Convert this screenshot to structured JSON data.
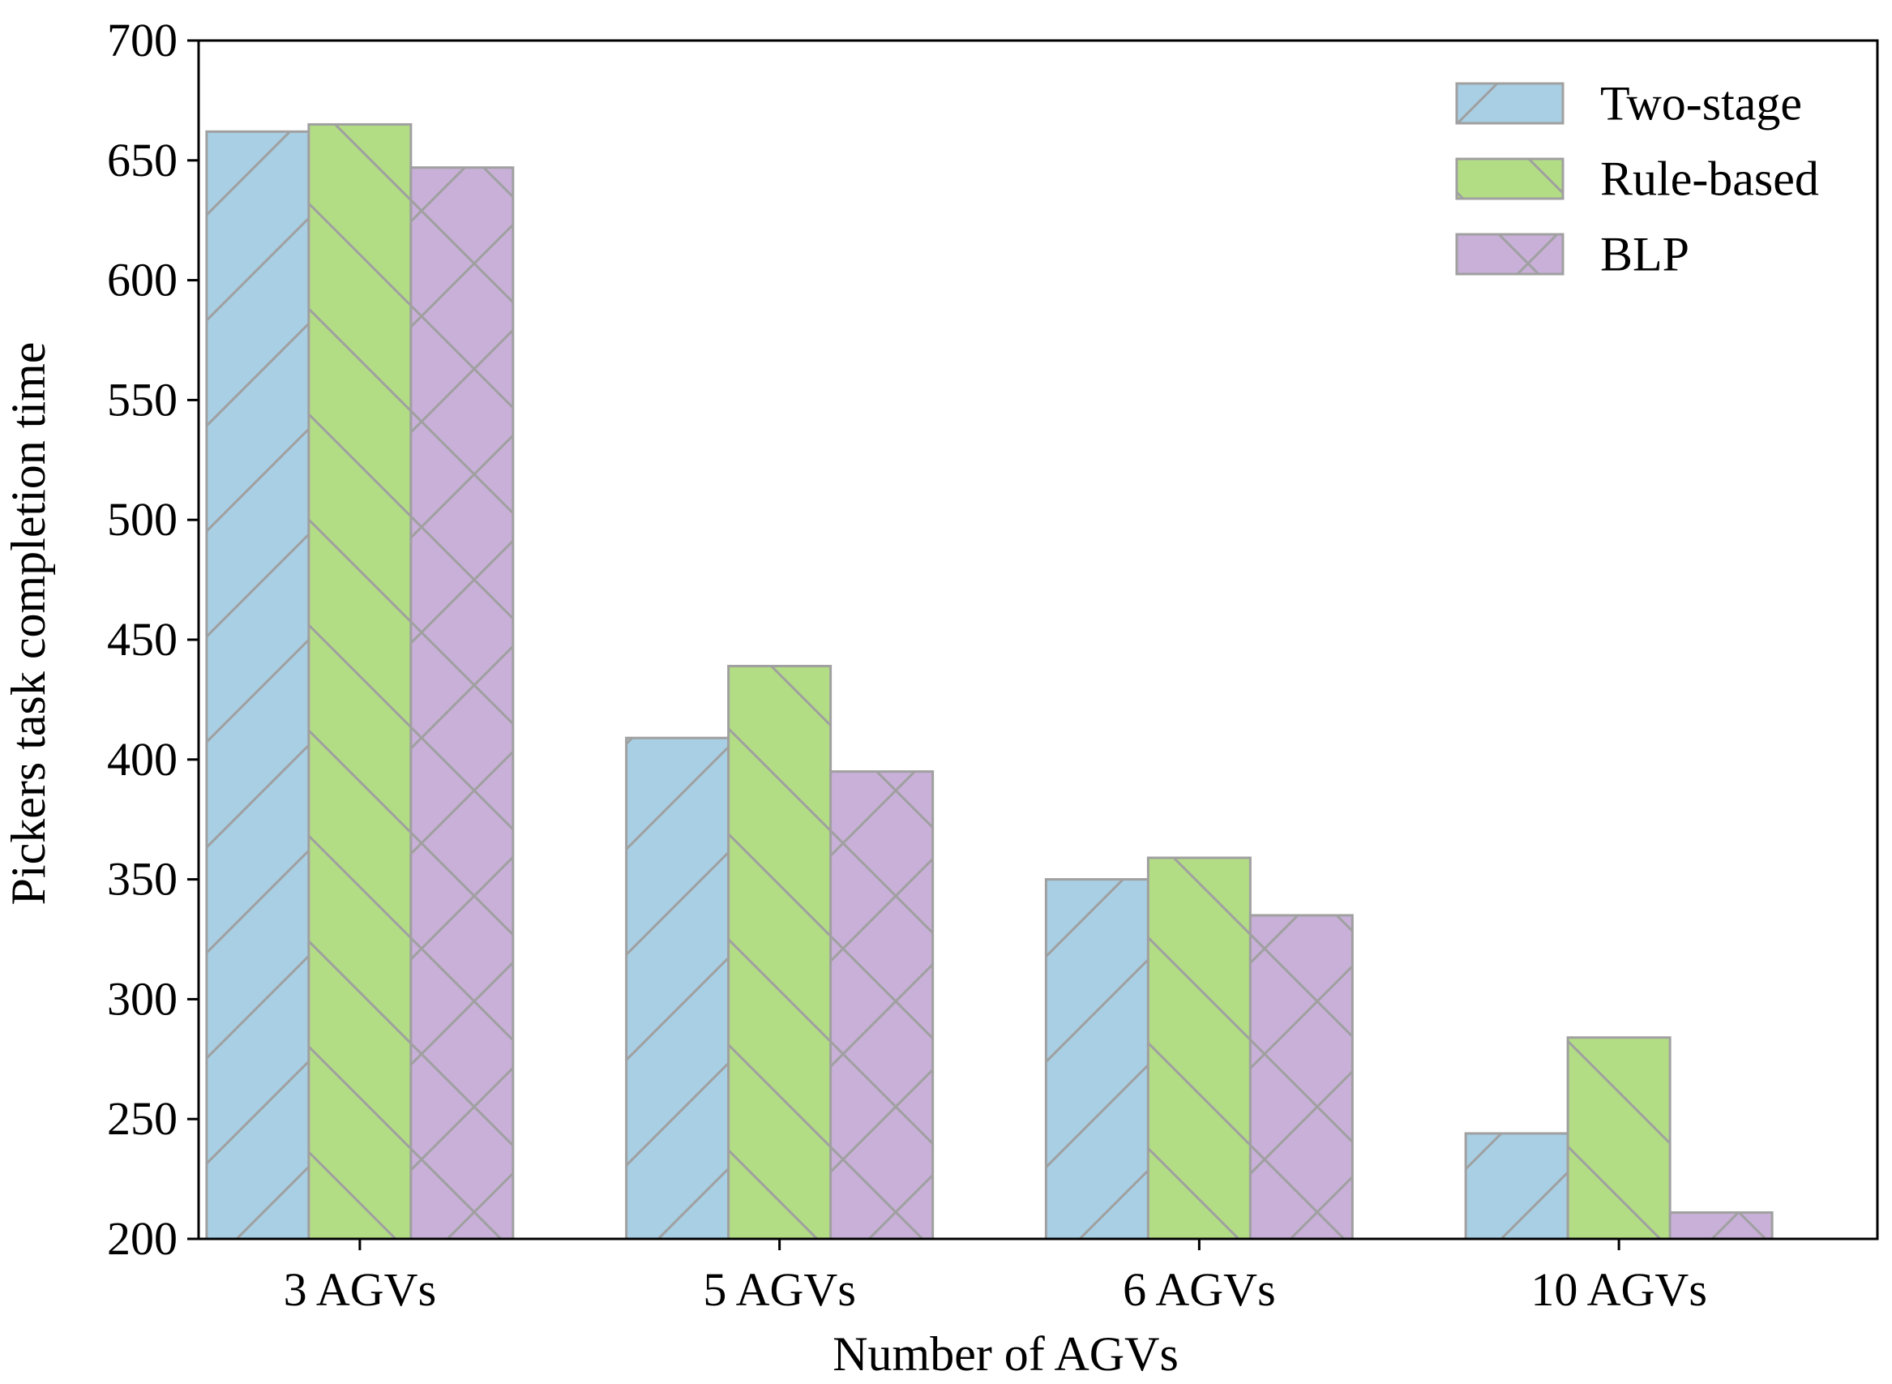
{
  "chart_data": {
    "type": "bar",
    "title": "",
    "xlabel": "Number of AGVs",
    "ylabel": "Pickers task completion time",
    "categories": [
      "3 AGVs",
      "5 AGVs",
      "6 AGVs",
      "10 AGVs"
    ],
    "ylim": [
      200,
      700
    ],
    "yticks": [
      200,
      250,
      300,
      350,
      400,
      450,
      500,
      550,
      600,
      650,
      700
    ],
    "grid": false,
    "legend_position": "top-right",
    "series": [
      {
        "name": "Two-stage",
        "values": [
          662,
          409,
          350,
          244
        ],
        "color": "#a8cfe4",
        "hatch": "forward-diagonal"
      },
      {
        "name": "Rule-based",
        "values": [
          665,
          439,
          359,
          284
        ],
        "color": "#b3dd85",
        "hatch": "back-diagonal"
      },
      {
        "name": "BLP",
        "values": [
          647,
          395,
          335,
          211
        ],
        "color": "#c8b0d8",
        "hatch": "cross-diagonal"
      }
    ],
    "edge_color": "#a0a0a0"
  }
}
